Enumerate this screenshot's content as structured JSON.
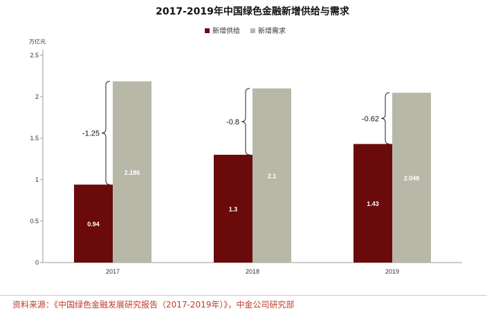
{
  "chart_data": {
    "type": "bar",
    "title": "2017-2019年中国绿色金融新增供给与需求",
    "unit": "万亿元",
    "categories": [
      "2017",
      "2018",
      "2019"
    ],
    "series": [
      {
        "name": "新增供给",
        "values": [
          0.94,
          1.3,
          1.43
        ],
        "labels": [
          "0.94",
          "1.3",
          "1.43"
        ],
        "color": "#6b0a0a"
      },
      {
        "name": "新增需求",
        "values": [
          2.186,
          2.1,
          2.048
        ],
        "labels": [
          "2.186",
          "2.1",
          "2.048"
        ],
        "color": "#b8b8a8"
      }
    ],
    "differences": [
      "-1.25",
      "-0.8",
      "-0.62"
    ],
    "yticks": [
      "0",
      "0.5",
      "1",
      "1.5",
      "2",
      "2.5"
    ],
    "ylim": [
      0,
      2.5
    ],
    "legend_position": "top-center",
    "grid": false
  },
  "source": "资料来源：《中国绿色金融发展研究报告（2017-2019年）》，中金公司研究部"
}
